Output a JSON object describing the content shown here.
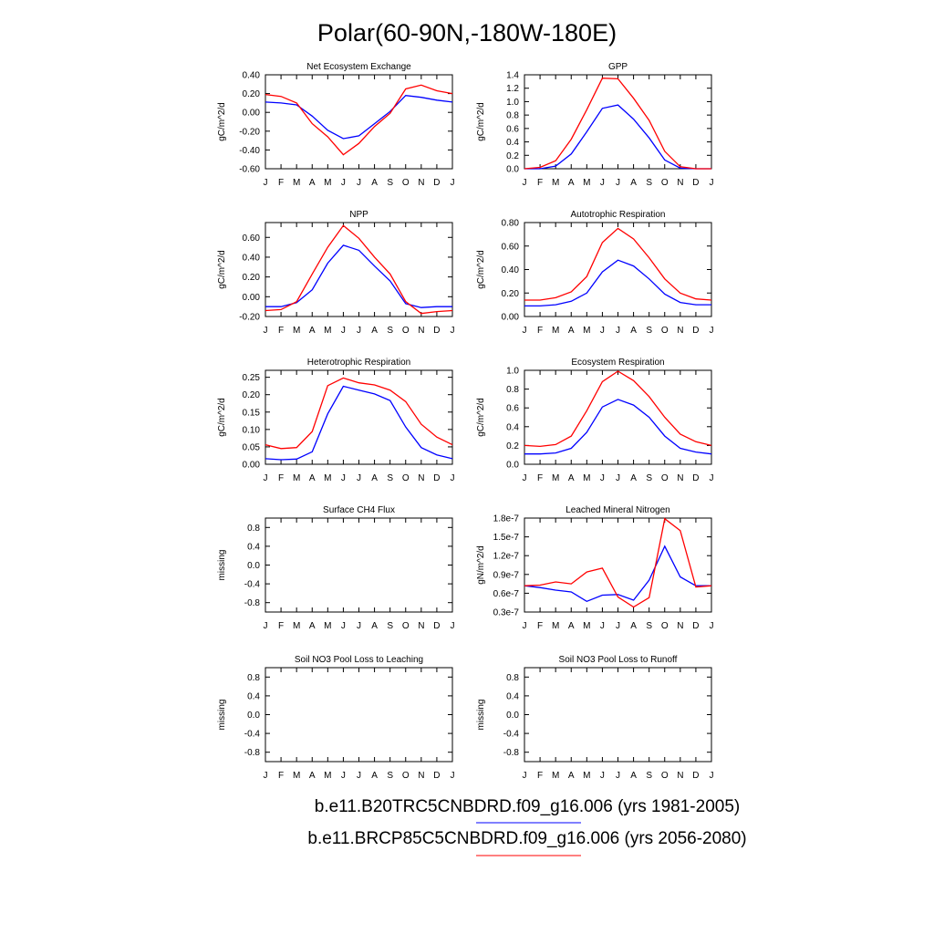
{
  "title": "Polar(60-90N,-180W-180E)",
  "legend": [
    {
      "label": "b.e11.B20TRC5CNBDRD.f09_g16.006 (yrs 1981-2005)",
      "color": "#0000ff"
    },
    {
      "label": "b.e11.BRCP85C5CNBDRD.f09_g16.006 (yrs 2056-2080)",
      "color": "#ff0000"
    }
  ],
  "months": [
    "J",
    "F",
    "M",
    "A",
    "M",
    "J",
    "J",
    "A",
    "S",
    "O",
    "N",
    "D",
    "J"
  ],
  "chart_data": [
    {
      "type": "line",
      "title": "Net Ecosystem Exchange",
      "ylabel": "gC/m^2/d",
      "ylim": [
        -0.6,
        0.4
      ],
      "yticks": [
        -0.6,
        -0.4,
        -0.2,
        0.0,
        0.2,
        0.4
      ],
      "yticklabels": [
        "-0.60",
        "-0.40",
        "-0.20",
        "0.00",
        "0.20",
        "0.40"
      ],
      "x": [
        "J",
        "F",
        "M",
        "A",
        "M",
        "J",
        "J",
        "A",
        "S",
        "O",
        "N",
        "D",
        "J"
      ],
      "series": [
        {
          "color": "#0000ff",
          "values": [
            0.11,
            0.1,
            0.08,
            -0.04,
            -0.19,
            -0.28,
            -0.25,
            -0.12,
            0.01,
            0.18,
            0.16,
            0.13,
            0.11
          ]
        },
        {
          "color": "#ff0000",
          "values": [
            0.19,
            0.17,
            0.1,
            -0.12,
            -0.26,
            -0.45,
            -0.33,
            -0.15,
            -0.01,
            0.25,
            0.29,
            0.23,
            0.2
          ]
        }
      ]
    },
    {
      "type": "line",
      "title": "GPP",
      "ylabel": "gC/m^2/d",
      "ylim": [
        0.0,
        1.4
      ],
      "yticks": [
        0.0,
        0.2,
        0.4,
        0.6,
        0.8,
        1.0,
        1.2,
        1.4
      ],
      "yticklabels": [
        "0.0",
        "0.2",
        "0.4",
        "0.6",
        "0.8",
        "1.0",
        "1.2",
        "1.4"
      ],
      "x": [
        "J",
        "F",
        "M",
        "A",
        "M",
        "J",
        "J",
        "A",
        "S",
        "O",
        "N",
        "D",
        "J"
      ],
      "series": [
        {
          "color": "#0000ff",
          "values": [
            0.0,
            0.0,
            0.04,
            0.22,
            0.55,
            0.9,
            0.95,
            0.74,
            0.46,
            0.13,
            0.01,
            0.0,
            0.0
          ]
        },
        {
          "color": "#ff0000",
          "values": [
            0.0,
            0.02,
            0.12,
            0.44,
            0.88,
            1.35,
            1.34,
            1.05,
            0.72,
            0.26,
            0.03,
            0.0,
            0.0
          ]
        }
      ]
    },
    {
      "type": "line",
      "title": "NPP",
      "ylabel": "gC/m^2/d",
      "ylim": [
        -0.2,
        0.75
      ],
      "yticks": [
        -0.2,
        0.0,
        0.2,
        0.4,
        0.6
      ],
      "yticklabels": [
        "-0.20",
        "0.00",
        "0.20",
        "0.40",
        "0.60"
      ],
      "x": [
        "J",
        "F",
        "M",
        "A",
        "M",
        "J",
        "J",
        "A",
        "S",
        "O",
        "N",
        "D",
        "J"
      ],
      "series": [
        {
          "color": "#0000ff",
          "values": [
            -0.1,
            -0.1,
            -0.06,
            0.07,
            0.34,
            0.52,
            0.47,
            0.31,
            0.16,
            -0.07,
            -0.11,
            -0.1,
            -0.1
          ]
        },
        {
          "color": "#ff0000",
          "values": [
            -0.14,
            -0.13,
            -0.05,
            0.23,
            0.5,
            0.72,
            0.59,
            0.4,
            0.23,
            -0.05,
            -0.17,
            -0.15,
            -0.14
          ]
        }
      ]
    },
    {
      "type": "line",
      "title": "Autotrophic Respiration",
      "ylabel": "gC/m^2/d",
      "ylim": [
        0.0,
        0.8
      ],
      "yticks": [
        0.0,
        0.2,
        0.4,
        0.6,
        0.8
      ],
      "yticklabels": [
        "0.00",
        "0.20",
        "0.40",
        "0.60",
        "0.80"
      ],
      "x": [
        "J",
        "F",
        "M",
        "A",
        "M",
        "J",
        "J",
        "A",
        "S",
        "O",
        "N",
        "D",
        "J"
      ],
      "series": [
        {
          "color": "#0000ff",
          "values": [
            0.09,
            0.09,
            0.1,
            0.13,
            0.2,
            0.38,
            0.48,
            0.43,
            0.32,
            0.19,
            0.12,
            0.1,
            0.1
          ]
        },
        {
          "color": "#ff0000",
          "values": [
            0.14,
            0.14,
            0.16,
            0.21,
            0.34,
            0.63,
            0.75,
            0.66,
            0.5,
            0.32,
            0.2,
            0.15,
            0.14
          ]
        }
      ]
    },
    {
      "type": "line",
      "title": "Heterotrophic Respiration",
      "ylabel": "gC/m^2/d",
      "ylim": [
        0.0,
        0.27
      ],
      "yticks": [
        0.0,
        0.05,
        0.1,
        0.15,
        0.2,
        0.25
      ],
      "yticklabels": [
        "0.00",
        "0.05",
        "0.10",
        "0.15",
        "0.20",
        "0.25"
      ],
      "x": [
        "J",
        "F",
        "M",
        "A",
        "M",
        "J",
        "J",
        "A",
        "S",
        "O",
        "N",
        "D",
        "J"
      ],
      "series": [
        {
          "color": "#0000ff",
          "values": [
            0.016,
            0.013,
            0.015,
            0.036,
            0.145,
            0.224,
            0.213,
            0.202,
            0.183,
            0.107,
            0.048,
            0.027,
            0.016
          ]
        },
        {
          "color": "#ff0000",
          "values": [
            0.056,
            0.045,
            0.048,
            0.094,
            0.226,
            0.248,
            0.234,
            0.228,
            0.213,
            0.18,
            0.115,
            0.078,
            0.056
          ]
        }
      ]
    },
    {
      "type": "line",
      "title": "Ecosystem Respiration",
      "ylabel": "gC/m^2/d",
      "ylim": [
        0.0,
        1.0
      ],
      "yticks": [
        0.0,
        0.2,
        0.4,
        0.6,
        0.8,
        1.0
      ],
      "yticklabels": [
        "0.0",
        "0.2",
        "0.4",
        "0.6",
        "0.8",
        "1.0"
      ],
      "x": [
        "J",
        "F",
        "M",
        "A",
        "M",
        "J",
        "J",
        "A",
        "S",
        "O",
        "N",
        "D",
        "J"
      ],
      "series": [
        {
          "color": "#0000ff",
          "values": [
            0.11,
            0.11,
            0.12,
            0.17,
            0.34,
            0.61,
            0.69,
            0.63,
            0.5,
            0.3,
            0.17,
            0.13,
            0.11
          ]
        },
        {
          "color": "#ff0000",
          "values": [
            0.2,
            0.19,
            0.21,
            0.3,
            0.57,
            0.88,
            0.99,
            0.89,
            0.72,
            0.5,
            0.32,
            0.24,
            0.2
          ]
        }
      ]
    },
    {
      "type": "line",
      "title": "Surface CH4 Flux",
      "ylabel": "missing",
      "ylim": [
        -1.0,
        1.0
      ],
      "yticks": [
        -0.8,
        -0.4,
        0.0,
        0.4,
        0.8
      ],
      "yticklabels": [
        "-0.8",
        "-0.4",
        "0.0",
        "0.4",
        "0.8"
      ],
      "x": [
        "J",
        "F",
        "M",
        "A",
        "M",
        "J",
        "J",
        "A",
        "S",
        "O",
        "N",
        "D",
        "J"
      ],
      "series": []
    },
    {
      "type": "line",
      "title": "Leached Mineral Nitrogen",
      "ylabel": "gN/m^2/d",
      "ylim": [
        0.3,
        1.8
      ],
      "yticks": [
        0.3,
        0.6,
        0.9,
        1.2,
        1.5,
        1.8
      ],
      "yticklabels": [
        "0.3e-7",
        "0.6e-7",
        "0.9e-7",
        "1.2e-7",
        "1.5e-7",
        "1.8e-7"
      ],
      "x": [
        "J",
        "F",
        "M",
        "A",
        "M",
        "J",
        "J",
        "A",
        "S",
        "O",
        "N",
        "D",
        "J"
      ],
      "series": [
        {
          "color": "#0000ff",
          "values": [
            0.72,
            0.69,
            0.65,
            0.62,
            0.47,
            0.57,
            0.58,
            0.49,
            0.81,
            1.35,
            0.86,
            0.72,
            0.72
          ]
        },
        {
          "color": "#ff0000",
          "values": [
            0.72,
            0.73,
            0.78,
            0.75,
            0.94,
            1.0,
            0.54,
            0.38,
            0.53,
            1.79,
            1.6,
            0.7,
            0.72
          ]
        }
      ]
    },
    {
      "type": "line",
      "title": "Soil NO3 Pool Loss to Leaching",
      "ylabel": "missing",
      "ylim": [
        -1.0,
        1.0
      ],
      "yticks": [
        -0.8,
        -0.4,
        0.0,
        0.4,
        0.8
      ],
      "yticklabels": [
        "-0.8",
        "-0.4",
        "0.0",
        "0.4",
        "0.8"
      ],
      "x": [
        "J",
        "F",
        "M",
        "A",
        "M",
        "J",
        "J",
        "A",
        "S",
        "O",
        "N",
        "D",
        "J"
      ],
      "series": []
    },
    {
      "type": "line",
      "title": "Soil NO3 Pool Loss to Runoff",
      "ylabel": "missing",
      "ylim": [
        -1.0,
        1.0
      ],
      "yticks": [
        -0.8,
        -0.4,
        0.0,
        0.4,
        0.8
      ],
      "yticklabels": [
        "-0.8",
        "-0.4",
        "0.0",
        "0.4",
        "0.8"
      ],
      "x": [
        "J",
        "F",
        "M",
        "A",
        "M",
        "J",
        "J",
        "A",
        "S",
        "O",
        "N",
        "D",
        "J"
      ],
      "series": []
    }
  ]
}
